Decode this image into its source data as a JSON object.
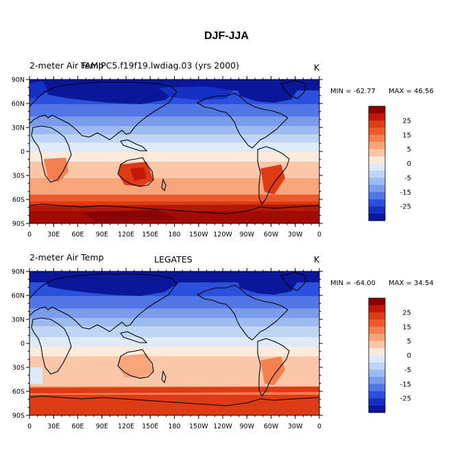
{
  "title": "DJF-JJA",
  "panels": [
    {
      "left_label": "2-meter Air Temp",
      "center_label": "FAMIPC5.f19f19.lwdiag.03 (yrs 2000)",
      "right_label": "K",
      "min_text": "MIN = -62.77",
      "max_text": "MAX =  46.56",
      "lat_labels": [
        "90N",
        "60N",
        "30N",
        "0",
        "30S",
        "60S",
        "90S"
      ],
      "lon_labels": [
        "0",
        "30E",
        "60E",
        "90E",
        "120E",
        "150E",
        "180",
        "150W",
        "120W",
        "90W",
        "60W",
        "30W",
        "0"
      ]
    },
    {
      "left_label": "2-meter Air Temp",
      "center_label": "LEGATES",
      "right_label": "K",
      "min_text": "MIN = -64.00",
      "max_text": "MAX =  34.54",
      "lat_labels": [
        "90N",
        "60N",
        "30N",
        "0",
        "30S",
        "60S",
        "90S"
      ],
      "lon_labels": [
        "0",
        "30E",
        "60E",
        "90E",
        "120E",
        "150E",
        "180",
        "150W",
        "120W",
        "90W",
        "60W",
        "30W",
        "0"
      ]
    }
  ],
  "colorbar": {
    "colors": [
      "#8b0000",
      "#c21807",
      "#dd3a16",
      "#ed5a2a",
      "#f47f4f",
      "#f9a57c",
      "#fcc7a8",
      "#feeadb",
      "#dfeaf8",
      "#bed6f3",
      "#9dbbee",
      "#7a9cea",
      "#5276e5",
      "#2b50dd",
      "#1530c4",
      "#0a1798"
    ],
    "labels": [
      "25",
      "15",
      "5",
      "0",
      "-5",
      "-15",
      "-25"
    ]
  }
}
